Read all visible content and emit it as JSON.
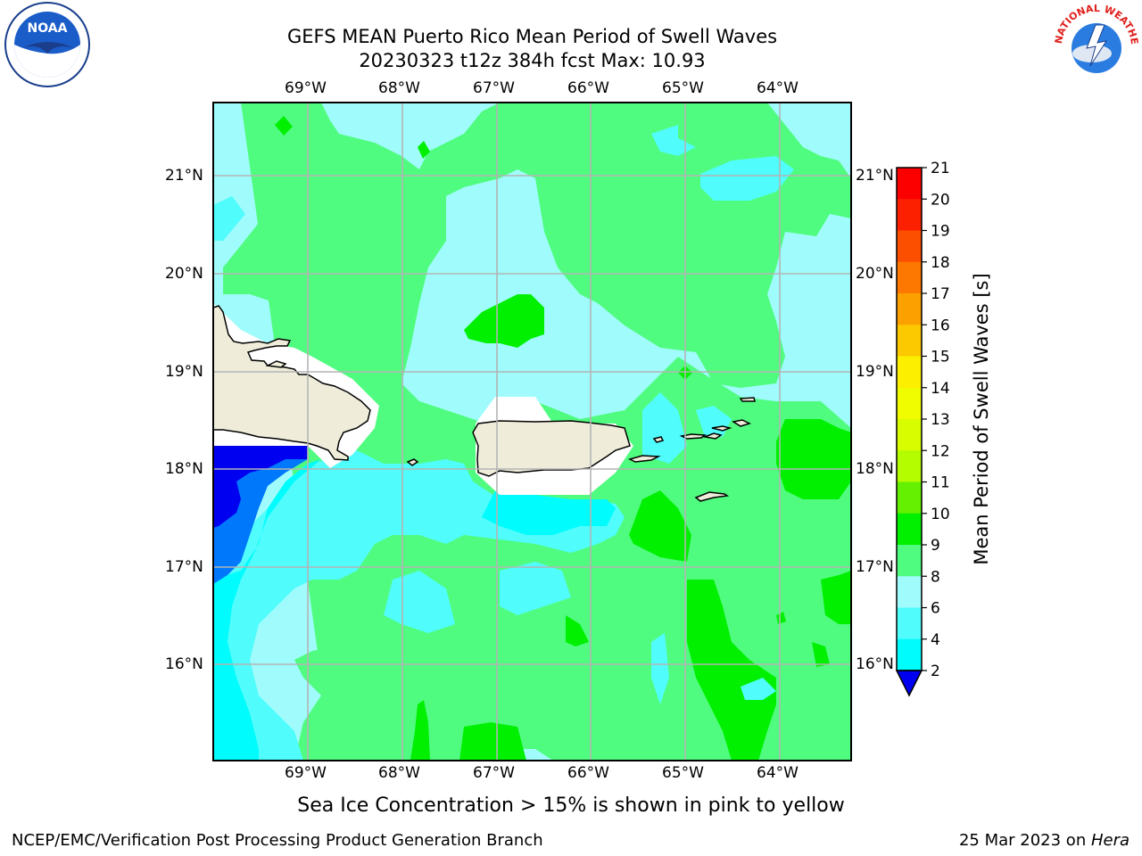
{
  "title": {
    "line1": "GEFS MEAN Puerto Rico Mean Period of Swell Waves",
    "line2": "20230323 t12z 384h fcst   Max: 10.93"
  },
  "map": {
    "lon_labels": [
      "69°W",
      "68°W",
      "67°W",
      "66°W",
      "65°W",
      "64°W"
    ],
    "lat_labels": [
      "21°N",
      "20°N",
      "19°N",
      "18°N",
      "17°N",
      "16°N"
    ],
    "colors": {
      "land": "#efedda",
      "coast": "#000000",
      "grid": "#b4b4b4",
      "band_8_9": "#a0fcfc",
      "band_9_10": "#50fc80",
      "band_10_11": "#00f000",
      "band_6_8": "#00fcfc",
      "band_2_4": "#0000f0"
    }
  },
  "colorbar": {
    "label": "Mean Period of Swell Waves [s]",
    "ticks": [
      "21",
      "20",
      "19",
      "18",
      "17",
      "16",
      "15",
      "14",
      "13",
      "12",
      "11",
      "10",
      "9",
      "8",
      "6",
      "4",
      "2"
    ],
    "colors": [
      "#fc0000",
      "#fc2000",
      "#fc5000",
      "#fc7800",
      "#fca000",
      "#fcc800",
      "#fcf000",
      "#f0fc00",
      "#d8fc00",
      "#b4fc00",
      "#64f000",
      "#00f000",
      "#50fc80",
      "#a0fcfc",
      "#50fcfc",
      "#00fcfc",
      "#0078fc",
      "#0000f0"
    ]
  },
  "notes": {
    "ice": "Sea Ice Concentration > 15% is shown in pink to yellow"
  },
  "footer": {
    "left": "NCEP/EMC/Verification Post Processing Product Generation Branch",
    "right_prefix": "25 Mar 2023 on ",
    "right_host": "Hera"
  },
  "logos": {
    "noaa_text": "NOAA",
    "nws_text": "NATIONAL WEATHER SERVICE"
  }
}
